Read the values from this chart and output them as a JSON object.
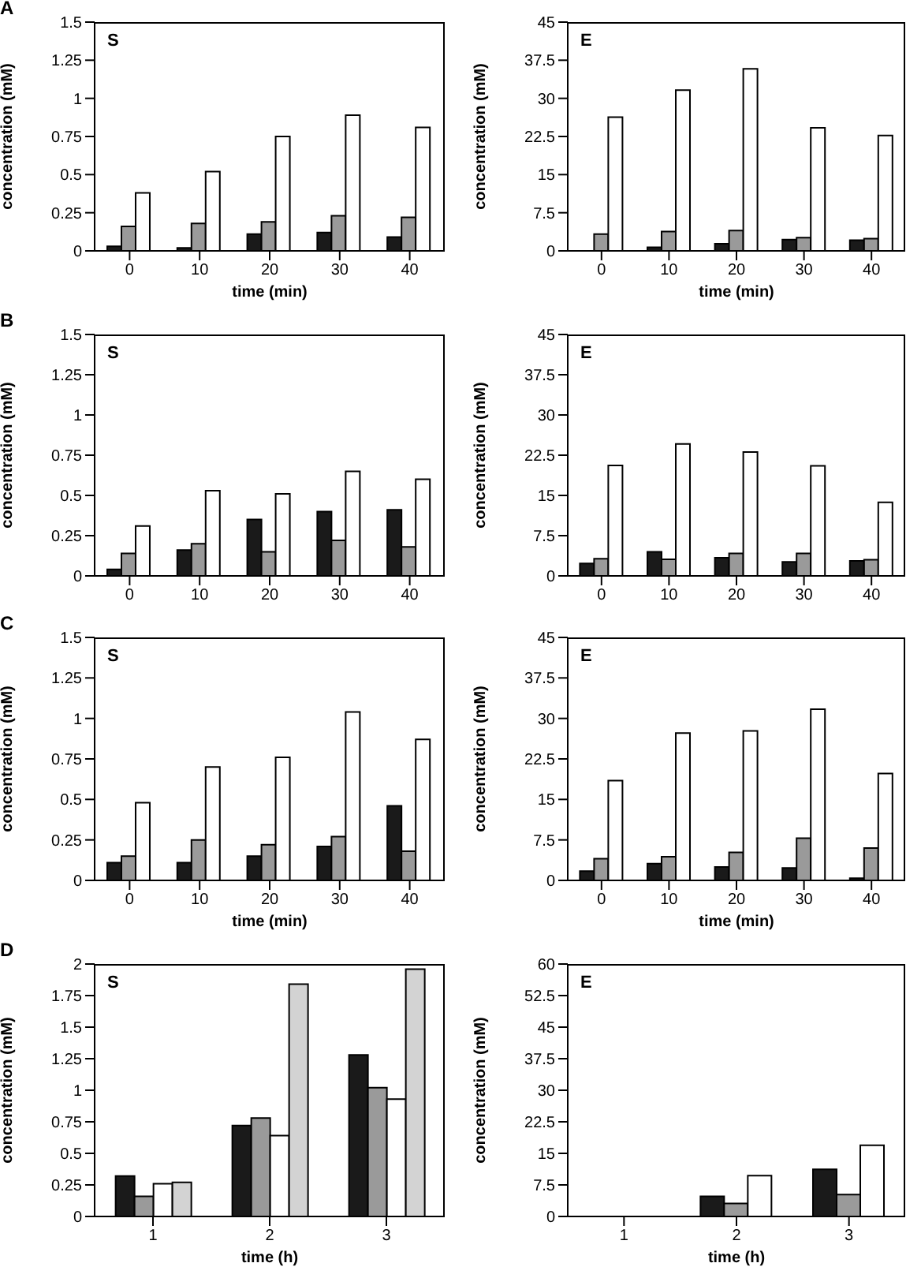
{
  "chart_data": [
    {
      "type": "bar",
      "annotations": [
        "A",
        "S"
      ],
      "xlabel": "time (min)",
      "ylabel": "concentration (mM)",
      "categories": [
        "0",
        "10",
        "20",
        "30",
        "40"
      ],
      "ylim": [
        0,
        1.5
      ],
      "yticks": [
        0,
        0.25,
        0.5,
        0.75,
        1,
        1.25,
        1.5
      ],
      "series": [
        {
          "color": "#1a1a1a",
          "values": [
            0.03,
            0.02,
            0.11,
            0.12,
            0.09
          ]
        },
        {
          "color": "#9a9a9a",
          "values": [
            0.16,
            0.18,
            0.19,
            0.23,
            0.22
          ]
        },
        {
          "color": "#ffffff",
          "values": [
            0.38,
            0.52,
            0.75,
            0.89,
            0.81
          ]
        }
      ]
    },
    {
      "type": "bar",
      "annotations": [
        "E"
      ],
      "xlabel": "time (min)",
      "ylabel": "concentration (mM)",
      "categories": [
        "0",
        "10",
        "20",
        "30",
        "40"
      ],
      "ylim": [
        0,
        45
      ],
      "yticks": [
        0,
        7.5,
        15,
        22.5,
        30,
        37.5,
        45
      ],
      "series": [
        {
          "color": "#1a1a1a",
          "values": [
            0,
            0.7,
            1.4,
            2.2,
            2.1
          ]
        },
        {
          "color": "#9a9a9a",
          "values": [
            3.3,
            3.8,
            4.0,
            2.6,
            2.4
          ]
        },
        {
          "color": "#ffffff",
          "values": [
            26.3,
            31.6,
            35.8,
            24.2,
            22.7
          ]
        }
      ]
    },
    {
      "type": "bar",
      "annotations": [
        "B",
        "S"
      ],
      "ylabel": "concentration (mM)",
      "categories": [
        "0",
        "10",
        "20",
        "30",
        "40"
      ],
      "ylim": [
        0,
        1.5
      ],
      "yticks": [
        0,
        0.25,
        0.5,
        0.75,
        1,
        1.25,
        1.5
      ],
      "series": [
        {
          "color": "#1a1a1a",
          "values": [
            0.04,
            0.16,
            0.35,
            0.4,
            0.41
          ]
        },
        {
          "color": "#9a9a9a",
          "values": [
            0.14,
            0.2,
            0.15,
            0.22,
            0.18
          ]
        },
        {
          "color": "#ffffff",
          "values": [
            0.31,
            0.53,
            0.51,
            0.65,
            0.6
          ]
        }
      ]
    },
    {
      "type": "bar",
      "annotations": [
        "E"
      ],
      "ylabel": "concentration (mM)",
      "categories": [
        "0",
        "10",
        "20",
        "30",
        "40"
      ],
      "ylim": [
        0,
        45
      ],
      "yticks": [
        0,
        7.5,
        15,
        22.5,
        30,
        37.5,
        45
      ],
      "series": [
        {
          "color": "#1a1a1a",
          "values": [
            2.3,
            4.5,
            3.4,
            2.6,
            2.8
          ]
        },
        {
          "color": "#9a9a9a",
          "values": [
            3.2,
            3.1,
            4.2,
            4.2,
            3.0
          ]
        },
        {
          "color": "#ffffff",
          "values": [
            20.6,
            24.6,
            23.1,
            20.5,
            13.7
          ]
        }
      ]
    },
    {
      "type": "bar",
      "annotations": [
        "C",
        "S"
      ],
      "xlabel": "time (min)",
      "ylabel": "concentration (mM)",
      "categories": [
        "0",
        "10",
        "20",
        "30",
        "40"
      ],
      "ylim": [
        0,
        1.5
      ],
      "yticks": [
        0,
        0.25,
        0.5,
        0.75,
        1,
        1.25,
        1.5
      ],
      "series": [
        {
          "color": "#1a1a1a",
          "values": [
            0.11,
            0.11,
            0.15,
            0.21,
            0.46
          ]
        },
        {
          "color": "#9a9a9a",
          "values": [
            0.15,
            0.25,
            0.22,
            0.27,
            0.18
          ]
        },
        {
          "color": "#ffffff",
          "values": [
            0.48,
            0.7,
            0.76,
            1.04,
            0.87
          ]
        }
      ]
    },
    {
      "type": "bar",
      "annotations": [
        "E"
      ],
      "xlabel": "time (min)",
      "ylabel": "concentration (mM)",
      "categories": [
        "0",
        "10",
        "20",
        "30",
        "40"
      ],
      "ylim": [
        0,
        45
      ],
      "yticks": [
        0,
        7.5,
        15,
        22.5,
        30,
        37.5,
        45
      ],
      "series": [
        {
          "color": "#1a1a1a",
          "values": [
            1.7,
            3.1,
            2.5,
            2.3,
            0.4
          ]
        },
        {
          "color": "#9a9a9a",
          "values": [
            4.0,
            4.4,
            5.2,
            7.8,
            6.0
          ]
        },
        {
          "color": "#ffffff",
          "values": [
            18.5,
            27.3,
            27.7,
            31.7,
            19.8
          ]
        }
      ]
    },
    {
      "type": "bar",
      "annotations": [
        "D",
        "S"
      ],
      "xlabel": "time (h)",
      "ylabel": "concentration (mM)",
      "categories": [
        "1",
        "2",
        "3"
      ],
      "ylim": [
        0,
        2
      ],
      "yticks": [
        0,
        0.25,
        0.5,
        0.75,
        1,
        1.25,
        1.5,
        1.75,
        2
      ],
      "series": [
        {
          "color": "#1a1a1a",
          "values": [
            0.32,
            0.72,
            1.28
          ]
        },
        {
          "color": "#9a9a9a",
          "values": [
            0.16,
            0.78,
            1.02
          ]
        },
        {
          "color": "#ffffff",
          "values": [
            0.26,
            0.64,
            0.93
          ]
        },
        {
          "color": "#d3d3d3",
          "values": [
            0.27,
            1.84,
            1.96
          ]
        }
      ]
    },
    {
      "type": "bar",
      "annotations": [
        "E"
      ],
      "xlabel": "time (h)",
      "ylabel": "concentration (mM)",
      "categories": [
        "1",
        "2",
        "3"
      ],
      "ylim": [
        0,
        60
      ],
      "yticks": [
        0,
        7.5,
        15,
        22.5,
        30,
        37.5,
        45,
        52.5,
        60
      ],
      "series": [
        {
          "color": "#1a1a1a",
          "values": [
            0,
            4.8,
            11.2
          ]
        },
        {
          "color": "#9a9a9a",
          "values": [
            0,
            3.1,
            5.2
          ]
        },
        {
          "color": "#ffffff",
          "values": [
            0,
            9.7,
            16.9
          ]
        }
      ]
    }
  ]
}
